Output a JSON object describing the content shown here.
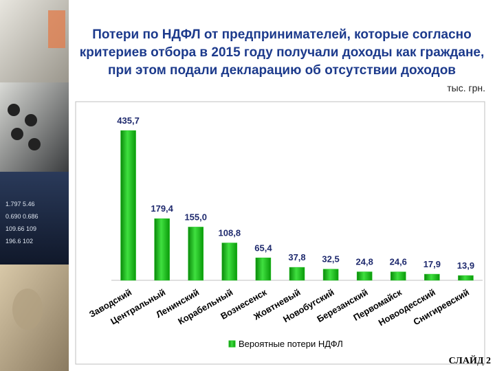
{
  "chart_data": {
    "type": "bar",
    "title": [
      "Потери по НДФЛ от предпринимателей, которые согласно",
      "критериев отбора в 2015 году получали доходы как граждане,",
      "при этом подали декларацию об отсутствии доходов"
    ],
    "unit": "тыс. грн.",
    "categories": [
      "Заводский",
      "Центральный",
      "Ленинский",
      "Корабельный",
      "Вознесенск",
      "Жовтневый",
      "Новобугский",
      "Березанский",
      "Первомайск",
      "Новоодесский",
      "Снигиревский"
    ],
    "series": [
      {
        "name": "Вероятные потери НДФЛ",
        "color": "#1fc01f",
        "values": [
          435.7,
          179.4,
          155,
          108.8,
          65.4,
          37.8,
          32.5,
          24.8,
          24.6,
          17.9,
          13.9
        ],
        "value_labels": [
          "435,7",
          "179,4",
          "155,0",
          "108,8",
          "65,4",
          "37,8",
          "32,5",
          "24,8",
          "24,6",
          "17,9",
          "13,9"
        ]
      }
    ],
    "legend": "bottom"
  },
  "footer": "СЛАЙД 2"
}
